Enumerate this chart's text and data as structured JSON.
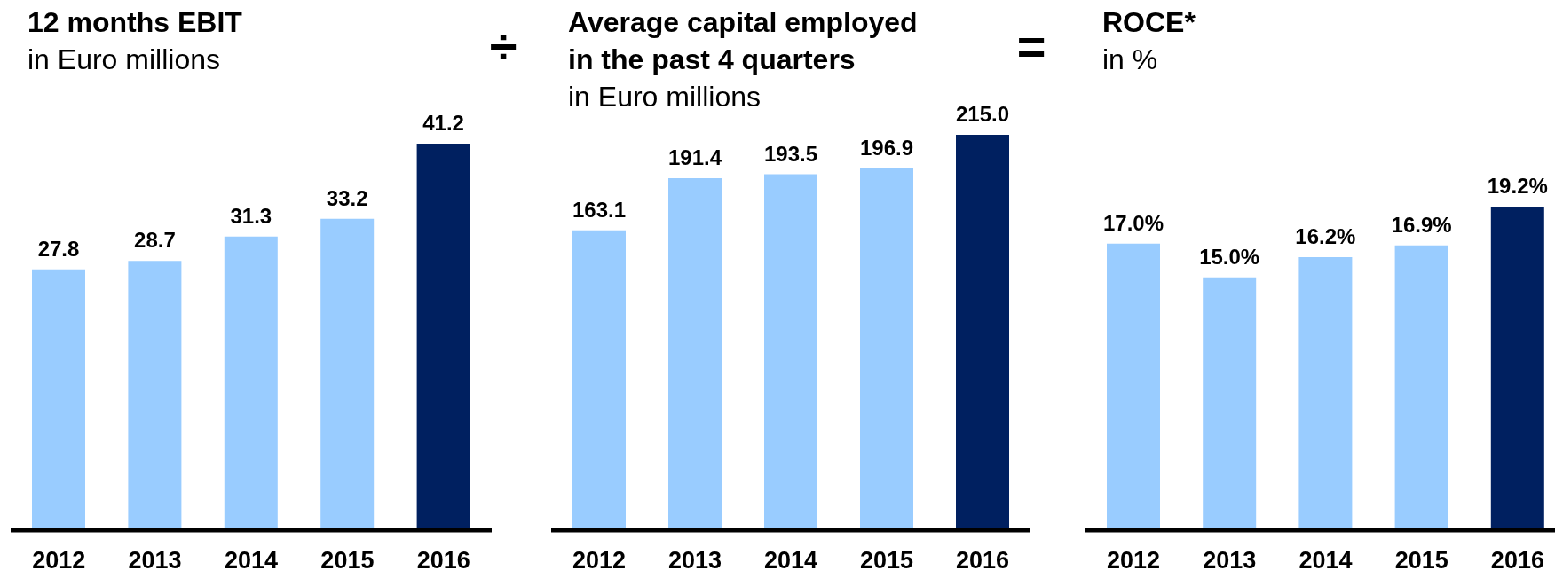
{
  "chart_data": [
    {
      "type": "bar",
      "title": "12 months EBIT",
      "subtitle": "in Euro millions",
      "annotations": [
        "÷"
      ],
      "categories": [
        "2012",
        "2013",
        "2014",
        "2015",
        "2016"
      ],
      "values": [
        27.8,
        28.7,
        31.3,
        33.2,
        41.2
      ],
      "colors": [
        "#99ccff",
        "#99ccff",
        "#99ccff",
        "#99ccff",
        "#002060"
      ],
      "value_labels": [
        "27.8",
        "28.7",
        "31.3",
        "33.2",
        "41.2"
      ],
      "tick_labels": "x"
    },
    {
      "type": "bar",
      "title": "Average capital employed in the past 4 quarters",
      "subtitle": "in Euro millions",
      "annotations": [
        "="
      ],
      "categories": [
        "2012",
        "2013",
        "2014",
        "2015",
        "2016"
      ],
      "values": [
        163.1,
        191.4,
        193.5,
        196.9,
        215.0
      ],
      "colors": [
        "#99ccff",
        "#99ccff",
        "#99ccff",
        "#99ccff",
        "#002060"
      ],
      "value_labels": [
        "163.1",
        "191.4",
        "193.5",
        "196.9",
        "215.0"
      ],
      "tick_labels": "x"
    },
    {
      "type": "bar",
      "title": "ROCE*",
      "subtitle": "in %",
      "categories": [
        "2012",
        "2013",
        "2014",
        "2015",
        "2016"
      ],
      "values": [
        17.0,
        15.0,
        16.2,
        16.9,
        19.2
      ],
      "colors": [
        "#99ccff",
        "#99ccff",
        "#99ccff",
        "#99ccff",
        "#002060"
      ],
      "value_labels": [
        "17.0%",
        "15.0%",
        "16.2%",
        "16.9%",
        "19.2%"
      ],
      "tick_labels": "x"
    }
  ]
}
